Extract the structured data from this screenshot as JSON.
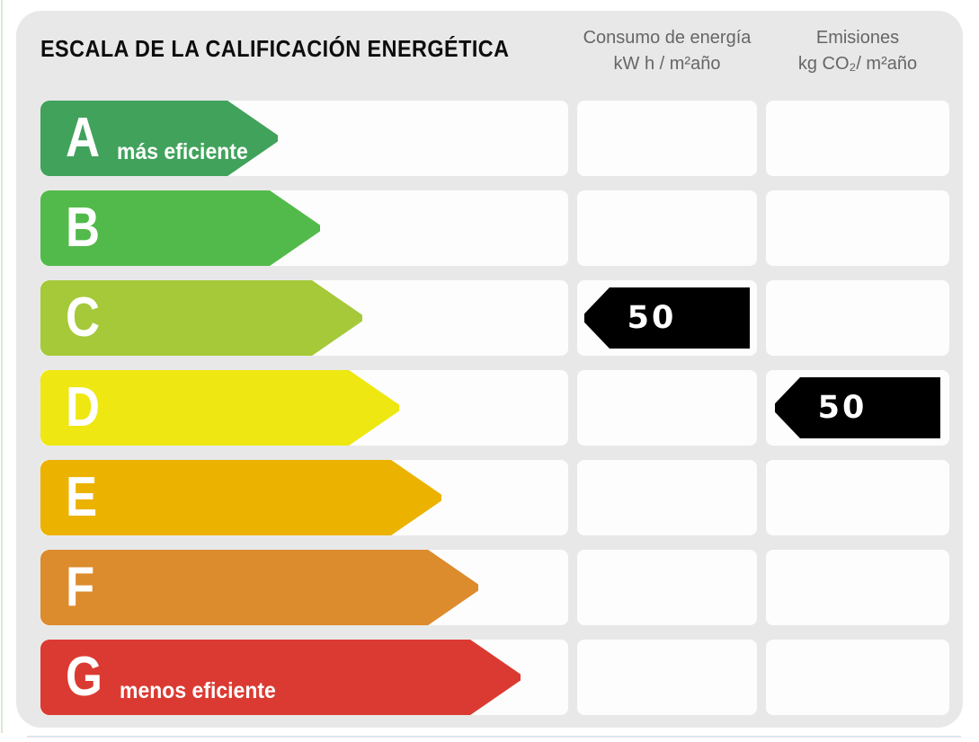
{
  "title": "ESCALA DE LA CALIFICACIÓN ENERGÉTICA",
  "columns": {
    "consumption": {
      "line1": "Consumo de energía",
      "line2": "kW h / m²año"
    },
    "emissions": {
      "line1": "Emisiones",
      "line2": "kg CO₂/ m²año"
    }
  },
  "scale": [
    {
      "grade": "A",
      "note": "más eficiente",
      "color": "#41a25b",
      "width_pct": 45
    },
    {
      "grade": "B",
      "note": "",
      "color": "#52ba4a",
      "width_pct": 53
    },
    {
      "grade": "C",
      "note": "",
      "color": "#a5c939",
      "width_pct": 61
    },
    {
      "grade": "D",
      "note": "",
      "color": "#efe711",
      "width_pct": 68
    },
    {
      "grade": "E",
      "note": "",
      "color": "#ecb200",
      "width_pct": 76
    },
    {
      "grade": "F",
      "note": "",
      "color": "#dc8b2d",
      "width_pct": 83
    },
    {
      "grade": "G",
      "note": "menos eficiente",
      "color": "#db3a32",
      "width_pct": 91
    }
  ],
  "indicators": [
    {
      "column": "consumption",
      "row": "C",
      "value": "50"
    },
    {
      "column": "emissions",
      "row": "D",
      "value": "50"
    }
  ],
  "chart_data": {
    "type": "bar",
    "title": "ESCALA DE LA CALIFICACIÓN ENERGÉTICA",
    "categories": [
      "A",
      "B",
      "C",
      "D",
      "E",
      "F",
      "G"
    ],
    "category_colors": [
      "#41a25b",
      "#52ba4a",
      "#a5c939",
      "#efe711",
      "#ecb200",
      "#dc8b2d",
      "#db3a32"
    ],
    "bar_relative_lengths": [
      45,
      53,
      61,
      68,
      76,
      83,
      91
    ],
    "series": [
      {
        "name": "Consumo de energía kW h / m²año",
        "values": [
          null,
          null,
          50,
          null,
          null,
          null,
          null
        ]
      },
      {
        "name": "Emisiones kg CO₂/ m²año",
        "values": [
          null,
          null,
          null,
          50,
          null,
          null,
          null
        ]
      }
    ],
    "annotations": [
      "A = más eficiente",
      "G = menos eficiente"
    ],
    "orientation": "horizontal",
    "legend_position": "top",
    "grid": false
  }
}
